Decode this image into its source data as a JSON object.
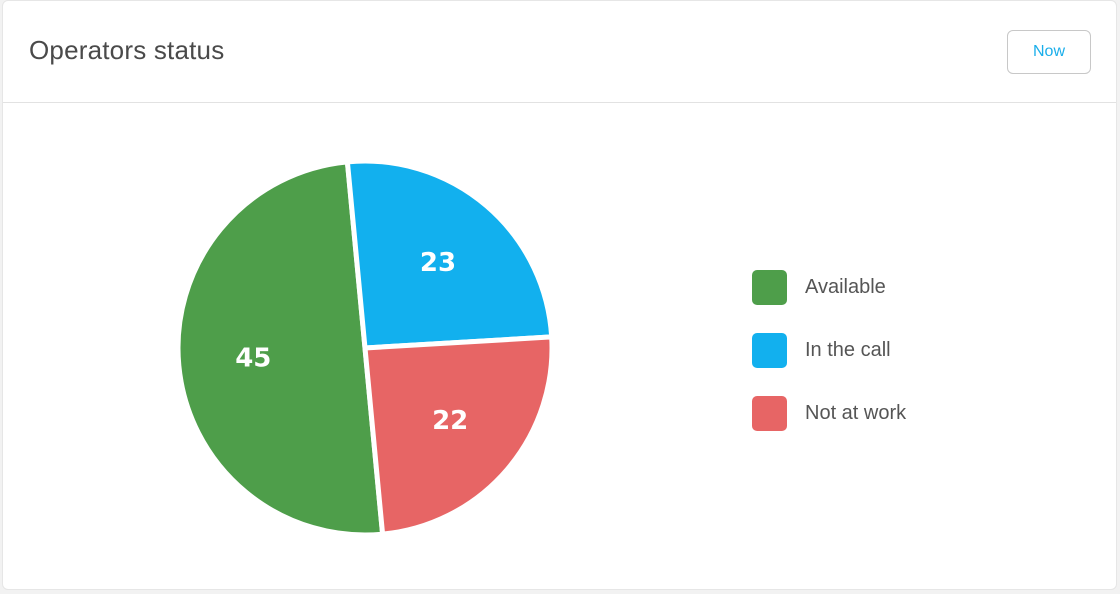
{
  "header": {
    "title": "Operators status",
    "now_button_label": "Now"
  },
  "chart_data": {
    "type": "pie",
    "categories": [
      "Available",
      "In the call",
      "Not at work"
    ],
    "values": [
      45,
      23,
      22
    ],
    "colors": [
      "#4e9e4a",
      "#12b0ee",
      "#e76565"
    ],
    "legend_position": "right"
  }
}
